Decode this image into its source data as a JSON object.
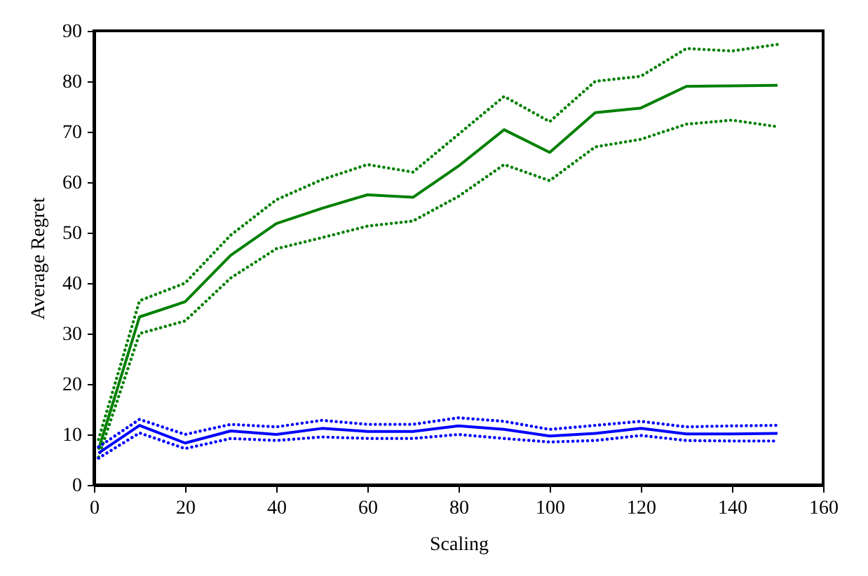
{
  "chart_data": {
    "type": "line",
    "xlabel": "Scaling",
    "ylabel": "Average Regret",
    "x": [
      1,
      10,
      20,
      30,
      40,
      50,
      60,
      70,
      80,
      90,
      100,
      110,
      120,
      130,
      140,
      150
    ],
    "xlim": [
      0,
      160
    ],
    "xticks": [
      0,
      20,
      40,
      60,
      80,
      100,
      120,
      140,
      160
    ],
    "ylim": [
      0,
      90
    ],
    "yticks": [
      0,
      10,
      20,
      30,
      40,
      50,
      60,
      70,
      80,
      90
    ],
    "grid": false,
    "marker": "none",
    "line_style": "solid",
    "series": [
      {
        "color": "#008000",
        "values": [
          7,
          33.3,
          36.3,
          45.5,
          51.8,
          54.8,
          57.5,
          57,
          63.2,
          70.4,
          65.9,
          73.8,
          74.7,
          79,
          79.1,
          79.2
        ]
      },
      {
        "color": "#008000",
        "line_style": "dotted",
        "values": [
          9,
          36.5,
          40,
          49.5,
          56.5,
          60.5,
          63.5,
          62,
          69.5,
          77,
          72,
          80,
          81,
          86.5,
          86,
          87.3
        ]
      },
      {
        "color": "#008000",
        "line_style": "dotted",
        "values": [
          5.5,
          30,
          32.5,
          41,
          46.8,
          49,
          51.3,
          52.3,
          57.2,
          63.5,
          60.3,
          67,
          68.5,
          71.5,
          72.3,
          71
        ]
      },
      {
        "color": "#0000ff",
        "values": [
          6.3,
          11.8,
          8.3,
          10.7,
          10,
          11.2,
          10.6,
          10.6,
          11.7,
          11,
          9.7,
          10.2,
          11.2,
          10.1,
          10.1,
          10.2
        ]
      },
      {
        "color": "#0000ff",
        "line_style": "dotted",
        "values": [
          7.5,
          13,
          10,
          12,
          11.5,
          12.8,
          12,
          12,
          13.3,
          12.6,
          11,
          11.8,
          12.6,
          11.5,
          11.7,
          11.8
        ]
      },
      {
        "color": "#0000ff",
        "line_style": "dotted",
        "values": [
          5.3,
          10.3,
          7.2,
          9.2,
          8.8,
          9.5,
          9.2,
          9.2,
          10,
          9.2,
          8.5,
          8.8,
          9.8,
          8.8,
          8.7,
          8.7
        ]
      }
    ]
  }
}
